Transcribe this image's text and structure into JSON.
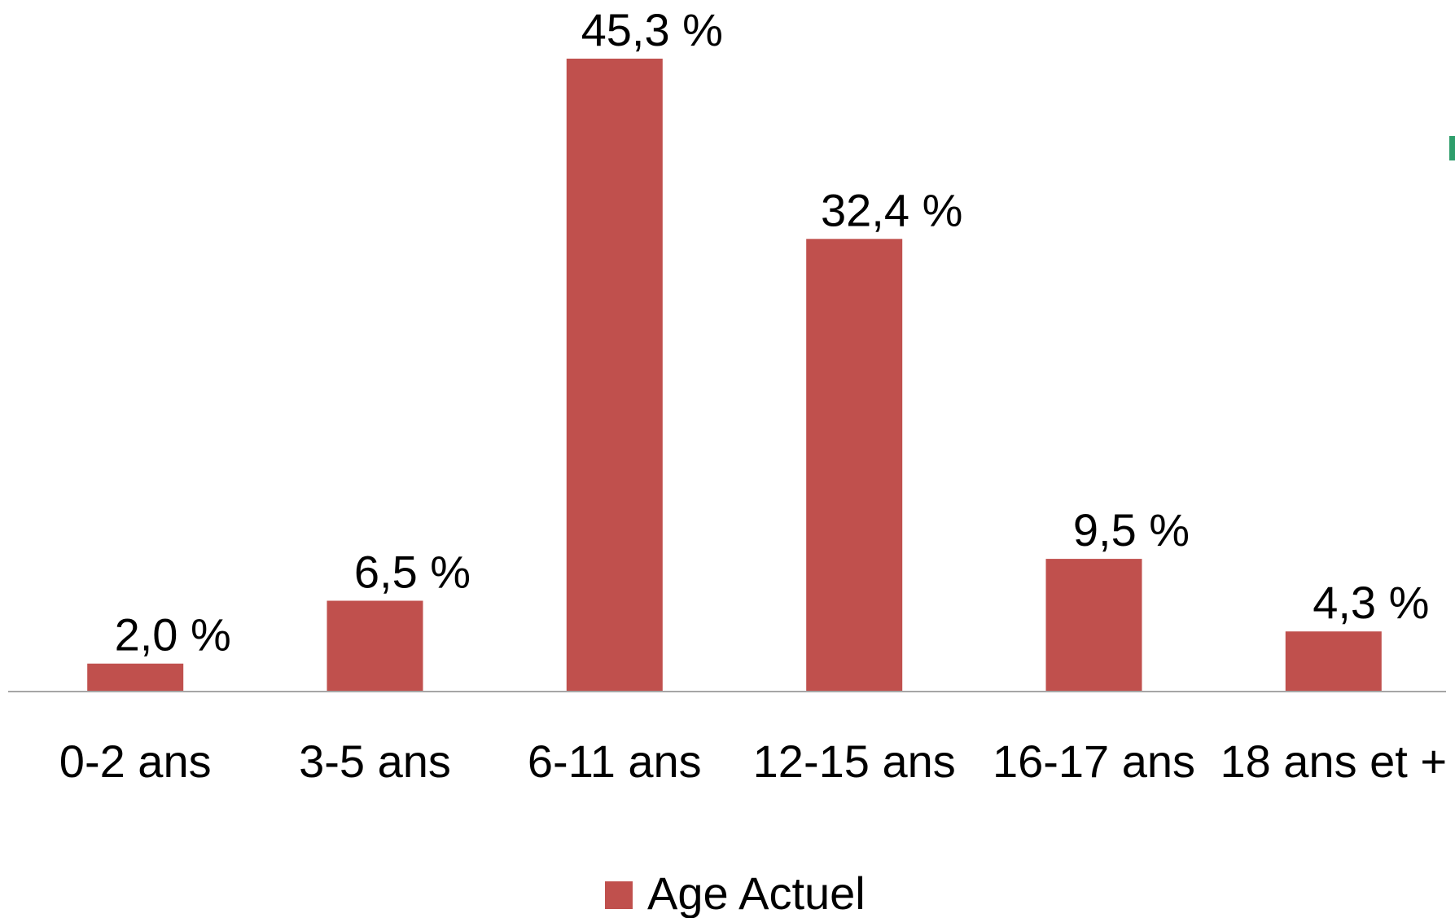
{
  "chart_data": {
    "type": "bar",
    "categories": [
      "0-2 ans",
      "3-5 ans",
      "6-11 ans",
      "12-15 ans",
      "16-17 ans",
      "18 ans et +"
    ],
    "series": [
      {
        "name": "Age Actuel",
        "values": [
          2.0,
          6.5,
          45.3,
          32.4,
          9.5,
          4.3
        ],
        "data_labels": [
          "2,0 %",
          "6,5 %",
          "45,3 %",
          "32,4 %",
          "9,5 %",
          "4,3 %"
        ]
      }
    ],
    "ylim": [
      0,
      45.3
    ],
    "grid": false,
    "legend_position": "bottom",
    "colors": {
      "bar": "#C0504D",
      "axis": "#A6A6A6",
      "accent_marker": "#2E9E6B"
    }
  }
}
